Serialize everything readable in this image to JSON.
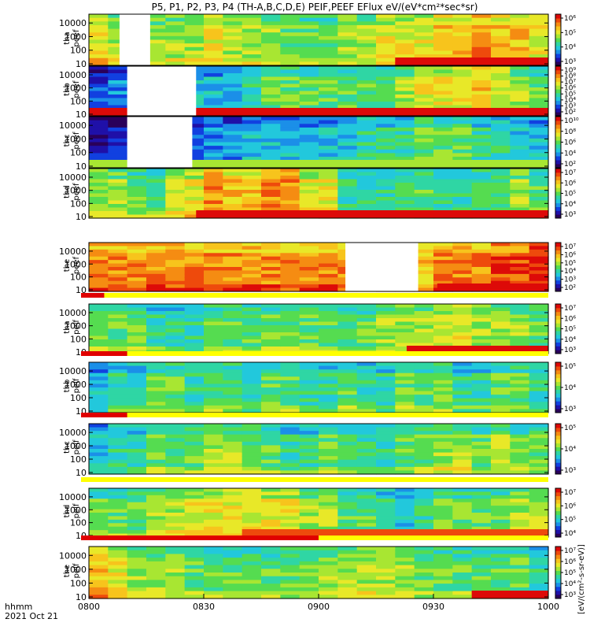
{
  "title": "P5, P1, P2, P3, P4 (TH-A,B,C,D,E) PEIF,PEEF EFlux eV/(eV*cm²*sec*sr)",
  "footer": {
    "hhmm_label": "hhmm",
    "date_label": "2021 Oct 21"
  },
  "colorbar_unit_label": "[eV/(cm²-s-sr-eV)]",
  "colors": {
    "palette": [
      "#2a005a",
      "#1f10a8",
      "#1140e0",
      "#1b8fe8",
      "#22c8dc",
      "#2fd6a4",
      "#55dc50",
      "#a8e632",
      "#e8e828",
      "#f7c41c",
      "#f58c12",
      "#ee4a0c",
      "#dd0a08"
    ],
    "gap_fill": "#ffffff",
    "status_bar_yellow": "#ffff00",
    "status_bar_red": "#e00000"
  },
  "chart_data": {
    "type": "heatmap",
    "x_ticks": [
      "0800",
      "0830",
      "0900",
      "0930",
      "1000"
    ],
    "x_range": [
      "08:00",
      "10:00"
    ],
    "y_ticks": [
      "10",
      "100",
      "1000",
      "10000"
    ],
    "y_scale": "log",
    "panels": [
      {
        "label": [
          "tha",
          "peef"
        ],
        "colorbar": {
          "ticks": [
            "10³",
            "10⁴",
            "10⁵",
            "10⁶"
          ]
        },
        "column_levels": [
          8,
          7,
          9,
          7,
          7,
          7,
          8,
          7,
          7,
          7,
          6,
          6,
          6,
          7,
          7,
          8,
          8,
          8,
          9,
          9,
          10,
          9,
          9,
          8
        ],
        "gaps": [
          [
            "08:08",
            "08:16"
          ]
        ],
        "bottom_band_level": 12,
        "bottom_band_start": "09:20"
      },
      {
        "label": [
          "thb",
          "peef"
        ],
        "colorbar": {
          "ticks": [
            "10²",
            "10³",
            "10⁴",
            "10⁵",
            "10⁶",
            "10⁷",
            "10⁸",
            "10⁹"
          ]
        },
        "column_levels": [
          2,
          3,
          3,
          3,
          4,
          4,
          4,
          4,
          5,
          6,
          6,
          6,
          6,
          6,
          6,
          6,
          7,
          8,
          8,
          8,
          9,
          8,
          7,
          6
        ],
        "gaps": [
          [
            "08:10",
            "08:28"
          ]
        ],
        "bottom_band_level": 12,
        "bottom_band_start": "08:00"
      },
      {
        "label": [
          "thc",
          "peef"
        ],
        "colorbar": {
          "ticks": [
            "10²",
            "10⁴",
            "10⁶",
            "10⁸",
            "10¹⁰"
          ]
        },
        "column_levels": [
          1,
          1,
          2,
          2,
          2,
          2,
          3,
          3,
          4,
          4,
          4,
          4,
          4,
          4,
          5,
          5,
          5,
          6,
          6,
          6,
          5,
          5,
          4,
          4
        ],
        "gaps": [
          [
            "08:10",
            "08:27"
          ]
        ],
        "bottom_band_level": 7,
        "bottom_band_start": "08:00"
      },
      {
        "label": [
          "thd",
          "peef"
        ],
        "colorbar": {
          "ticks": [
            "10³",
            "10⁴",
            "10⁵",
            "10⁶",
            "10⁷"
          ]
        },
        "column_levels": [
          7,
          7,
          6,
          6,
          8,
          8,
          10,
          9,
          9,
          10,
          10,
          8,
          8,
          5,
          5,
          5,
          6,
          6,
          5,
          5,
          6,
          6,
          7,
          6
        ],
        "gaps": [],
        "bottom_band_level": 12,
        "bottom_band_start": "08:28"
      },
      {
        "label": [
          "the",
          "peef"
        ],
        "colorbar": {
          "ticks": [
            "10²",
            "10³",
            "10⁴",
            "10⁵",
            "10⁶",
            "10⁷"
          ]
        },
        "column_levels": [
          10,
          10,
          10,
          10,
          10,
          10,
          10,
          10,
          10,
          10,
          10,
          10,
          10,
          10,
          9,
          9,
          9,
          9,
          10,
          10,
          10,
          11,
          11,
          12
        ],
        "gaps": [
          [
            "09:07",
            "09:26"
          ]
        ],
        "bottom_band_level": 12,
        "bottom_band_start": "09:31"
      },
      {
        "label": [
          "tha",
          "peif"
        ],
        "colorbar": {
          "ticks": [
            "10³",
            "10⁴",
            "10⁵",
            "10⁶",
            "10⁷"
          ]
        },
        "column_levels": [
          6,
          6,
          6,
          5,
          5,
          5,
          6,
          6,
          6,
          6,
          6,
          6,
          6,
          6,
          6,
          7,
          7,
          7,
          8,
          8,
          7,
          7,
          7,
          6
        ],
        "gaps": [],
        "bottom_band_level": 12,
        "bottom_band_start": "09:23"
      },
      {
        "label": [
          "thb",
          "peif"
        ],
        "colorbar": {
          "ticks": [
            "10³",
            "10⁴",
            "10⁵"
          ]
        },
        "column_levels": [
          4,
          5,
          5,
          6,
          6,
          5,
          6,
          6,
          5,
          6,
          6,
          5,
          5,
          6,
          5,
          5,
          6,
          6,
          6,
          5,
          5,
          6,
          6,
          5
        ],
        "gaps": [],
        "bottom_band_level": 0,
        "bottom_band_start": "08:00"
      },
      {
        "label": [
          "thc",
          "peif"
        ],
        "colorbar": {
          "ticks": [
            "10³",
            "10⁴",
            "10⁵"
          ]
        },
        "column_levels": [
          4,
          5,
          5,
          6,
          6,
          6,
          7,
          7,
          6,
          6,
          5,
          5,
          6,
          6,
          5,
          5,
          6,
          6,
          7,
          7,
          6,
          7,
          6,
          6
        ],
        "gaps": [],
        "bottom_band_level": 0,
        "bottom_band_start": "08:00"
      },
      {
        "label": [
          "thd",
          "peif"
        ],
        "colorbar": {
          "ticks": [
            "10⁴",
            "10⁵",
            "10⁶",
            "10⁷"
          ]
        },
        "column_levels": [
          6,
          6,
          6,
          7,
          7,
          8,
          8,
          8,
          8,
          8,
          8,
          7,
          7,
          6,
          6,
          5,
          4,
          5,
          6,
          6,
          6,
          6,
          7,
          7
        ],
        "gaps": [],
        "bottom_band_level": 11,
        "bottom_band_start": "08:40"
      },
      {
        "label": [
          "the",
          "peif"
        ],
        "colorbar": {
          "ticks": [
            "10³",
            "10⁴",
            "10⁵",
            "10⁶",
            "10⁷"
          ]
        },
        "column_levels": [
          9,
          8,
          7,
          7,
          7,
          6,
          6,
          6,
          6,
          6,
          6,
          6,
          7,
          7,
          7,
          7,
          7,
          6,
          6,
          6,
          6,
          6,
          6,
          5
        ],
        "gaps": [],
        "bottom_band_level": 12,
        "bottom_band_start": "09:40"
      }
    ],
    "status_bars": [
      {
        "after_panel": 5,
        "red_until": "08:04"
      },
      {
        "after_panel": 6,
        "red_until": "08:10"
      },
      {
        "after_panel": 7,
        "red_until": "08:10"
      },
      {
        "after_panel": 8,
        "red_until": "08:00"
      },
      {
        "after_panel": 9,
        "red_until": "09:00"
      }
    ]
  }
}
